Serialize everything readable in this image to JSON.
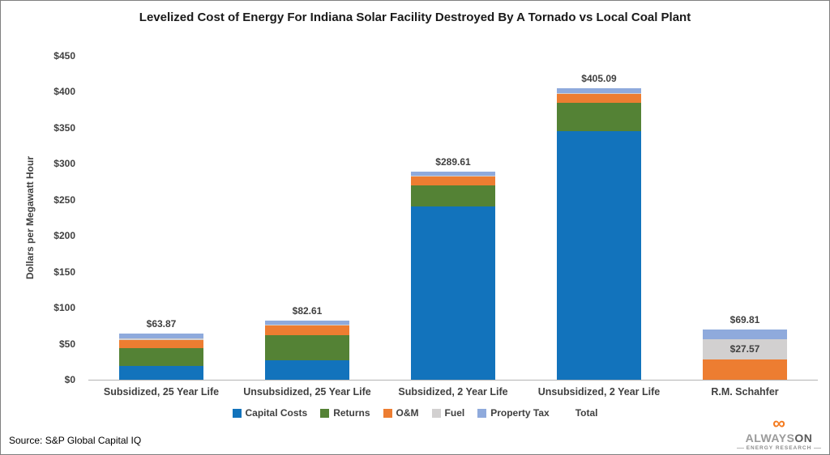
{
  "chart_data": {
    "type": "bar",
    "stacked": true,
    "title": "Levelized Cost of Energy For Indiana Solar Facility Destroyed By A Tornado vs Local Coal Plant",
    "xlabel": "",
    "ylabel": "Dollars per Megawatt Hour",
    "ylim": [
      0,
      450
    ],
    "grid": false,
    "legend_position": "bottom",
    "yticks": [
      {
        "value": 0,
        "label": "$0"
      },
      {
        "value": 50,
        "label": "$50"
      },
      {
        "value": 100,
        "label": "$100"
      },
      {
        "value": 150,
        "label": "$150"
      },
      {
        "value": 200,
        "label": "$200"
      },
      {
        "value": 250,
        "label": "$250"
      },
      {
        "value": 300,
        "label": "$300"
      },
      {
        "value": 350,
        "label": "$350"
      },
      {
        "value": 400,
        "label": "$400"
      },
      {
        "value": 450,
        "label": "$450"
      }
    ],
    "categories": [
      "Subsidized, 25 Year Life",
      "Unsubsidized, 25 Year Life",
      "Subsidized,  2 Year Life",
      "Unsubsidized, 2 Year Life",
      "R.M. Schahfer"
    ],
    "series": [
      {
        "name": "Capital Costs",
        "color": "#1273BC",
        "values": [
          19.0,
          27.0,
          241.0,
          345.0,
          0
        ]
      },
      {
        "name": "Returns",
        "color": "#548235",
        "values": [
          24.5,
          35.0,
          29.0,
          40.0,
          0
        ]
      },
      {
        "name": "O&M",
        "color": "#ED7D31",
        "values": [
          12.0,
          13.0,
          12.0,
          12.0,
          28.5
        ]
      },
      {
        "name": "Fuel",
        "color": "#D2D0D0",
        "values": [
          1.5,
          1.0,
          1.0,
          1.0,
          27.57
        ]
      },
      {
        "name": "Property Tax",
        "color": "#8FAADC",
        "values": [
          6.87,
          6.61,
          6.61,
          7.09,
          13.74
        ]
      }
    ],
    "totals": [
      "$63.87",
      "$82.61",
      "$289.61",
      "$405.09",
      "$69.81"
    ],
    "total_values": [
      63.87,
      82.61,
      289.61,
      405.09,
      69.81
    ],
    "inner_label": {
      "category_index": 4,
      "series_name": "Fuel",
      "text": "$27.57"
    },
    "legend": [
      {
        "label": "Capital Costs",
        "color": "#1273BC"
      },
      {
        "label": "Returns",
        "color": "#548235"
      },
      {
        "label": "O&M",
        "color": "#ED7D31"
      },
      {
        "label": "Fuel",
        "color": "#D2D0D0"
      },
      {
        "label": "Property Tax",
        "color": "#8FAADC"
      },
      {
        "label": "Total",
        "color": null
      }
    ]
  },
  "footer": {
    "source": "Source: S&P Global Capital IQ"
  },
  "logo": {
    "infinity_glyph": "∞",
    "wordmark_left": "ALWAYS",
    "wordmark_right": "ON",
    "subtitle": "ENERGY RESEARCH",
    "accent_color": "#F47B20"
  }
}
